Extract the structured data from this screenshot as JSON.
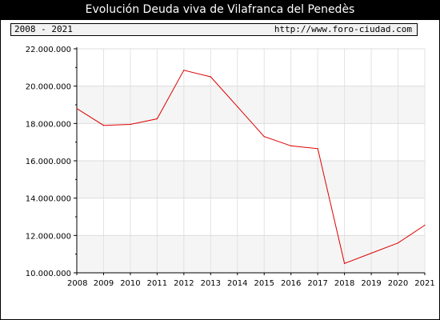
{
  "header": {
    "title": "Evolución Deuda viva de Vilafranca del Penedès",
    "period": "2008 - 2021",
    "source": "http://www.foro-ciudad.com"
  },
  "colors": {
    "line": "#dd0000",
    "band": "#f5f5f5",
    "grid": "#cccccc"
  },
  "chart_data": {
    "type": "line",
    "title": "Evolución Deuda viva de Vilafranca del Penedès",
    "x": [
      2008,
      2009,
      2010,
      2011,
      2012,
      2013,
      2014,
      2015,
      2016,
      2017,
      2018,
      2019,
      2020,
      2021
    ],
    "series": [
      {
        "values": [
          18800000,
          17900000,
          17950000,
          18250000,
          20850000,
          20500000,
          18900000,
          17300000,
          16800000,
          16650000,
          10500000,
          11050000,
          11600000,
          12550000
        ]
      }
    ],
    "ylim": [
      10000000,
      22000000
    ],
    "yticks": [
      10000000,
      12000000,
      14000000,
      16000000,
      18000000,
      20000000,
      22000000
    ],
    "ytick_labels": [
      "10.000.000",
      "12.000.000",
      "14.000.000",
      "16.000.000",
      "18.000.000",
      "20.000.000",
      "22.000.000"
    ],
    "xtick_labels": [
      "2008",
      "2009",
      "2010",
      "2011",
      "2012",
      "2013",
      "2014",
      "2015",
      "2016",
      "2017",
      "2018",
      "2019",
      "2020",
      "2021"
    ],
    "grid": true,
    "legend": "none"
  }
}
